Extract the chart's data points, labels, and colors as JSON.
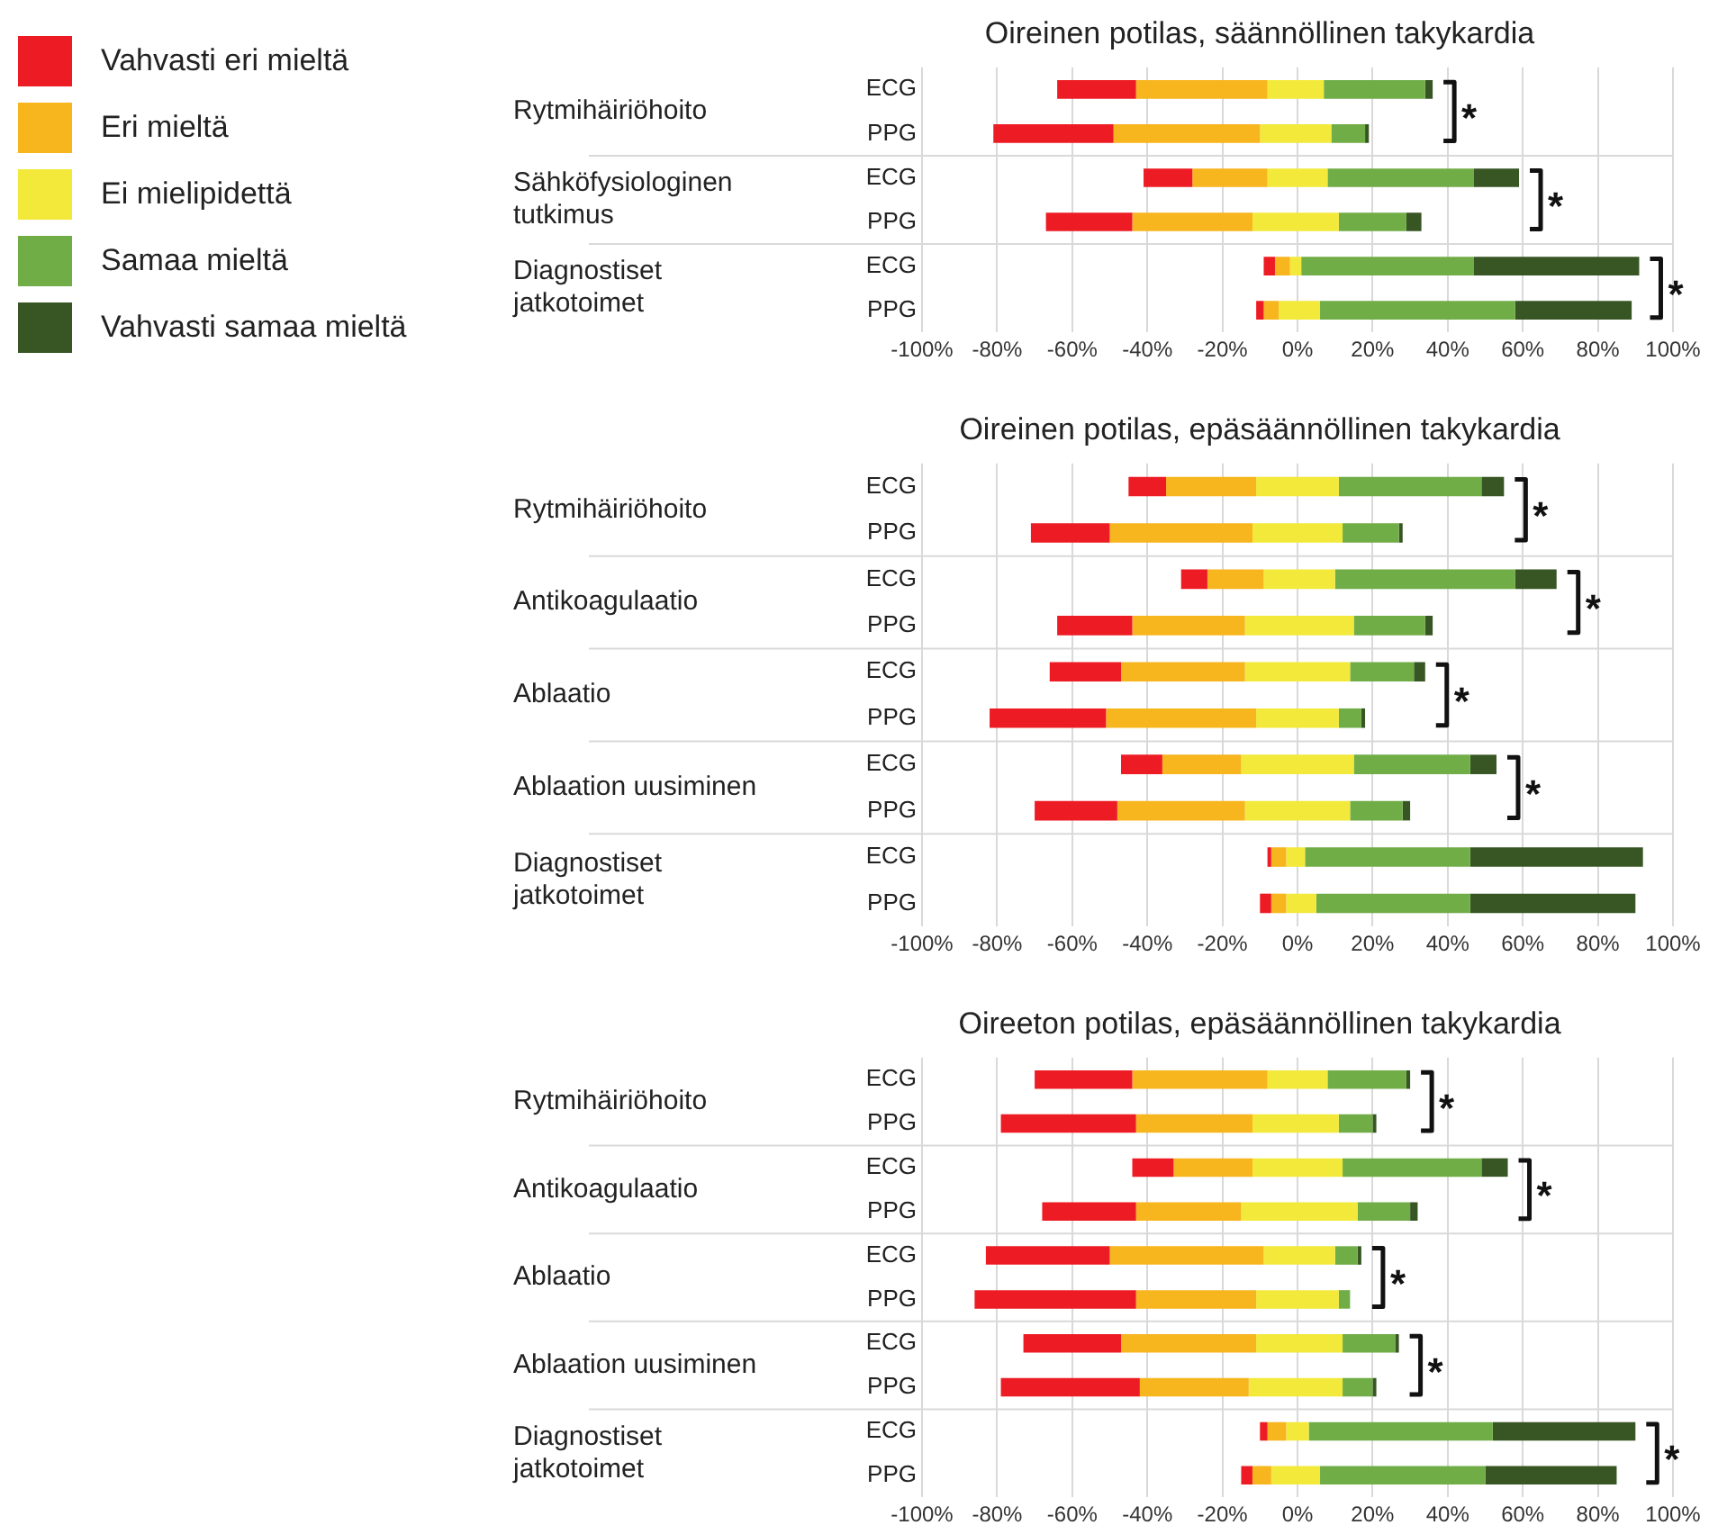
{
  "chart_data": [
    {
      "type": "bar",
      "title": "Oireinen potilas, säännöllinen takykardia",
      "orientation": "horizontal",
      "grid": "x",
      "legend": "left",
      "categories": [
        "ECG",
        "PPG",
        "ECG",
        "PPG",
        "ECG",
        "PPG"
      ],
      "series": [
        {
          "name": "Vahvasti eri mieltä",
          "color": "#ed1c24",
          "base": [
            -64,
            -81,
            -41,
            -67,
            -9,
            -11
          ],
          "values": [
            21,
            32,
            13,
            23,
            3,
            2
          ]
        },
        {
          "name": "Eri mieltä",
          "color": "#f7b51e",
          "base": [
            -43,
            -49,
            -28,
            -44,
            -6,
            -9
          ],
          "values": [
            35,
            39,
            20,
            32,
            4,
            4
          ]
        },
        {
          "name": "Ei mielipidettä",
          "color": "#f2e93a",
          "base": [
            -8,
            -10,
            -8,
            -12,
            -2,
            -5
          ],
          "values": [
            15,
            19,
            16,
            23,
            3,
            11
          ]
        },
        {
          "name": "Samaa mieltä",
          "color": "#70ad47",
          "base": [
            7,
            9,
            8,
            11,
            1,
            6
          ],
          "values": [
            27,
            9,
            39,
            18,
            46,
            52
          ]
        },
        {
          "name": "Vahvasti samaa mieltä",
          "color": "#375623",
          "base": [
            34,
            18,
            47,
            29,
            47,
            58
          ],
          "values": [
            2,
            1,
            12,
            4,
            44,
            31
          ]
        }
      ],
      "xlim": [
        -100,
        100
      ],
      "xticks": [
        {
          "value": -100,
          "label": "-100%"
        },
        {
          "value": -80,
          "label": "-80%"
        },
        {
          "value": -60,
          "label": "-60%"
        },
        {
          "value": -40,
          "label": "-40%"
        },
        {
          "value": -20,
          "label": "-20%"
        },
        {
          "value": 0,
          "label": "0%"
        },
        {
          "value": 20,
          "label": "20%"
        },
        {
          "value": 40,
          "label": "40%"
        },
        {
          "value": 60,
          "label": "60%"
        },
        {
          "value": 80,
          "label": "80%"
        },
        {
          "value": 100,
          "label": "100%"
        }
      ],
      "annotations": [
        "Rytmihäiriöhoito",
        "Sähköfysiologinen tutkimus",
        "Diagnostiset jatkotoimet",
        "*",
        "*",
        "*"
      ]
    },
    {
      "type": "bar",
      "title": "Oireinen potilas, epäsäännöllinen takykardia",
      "orientation": "horizontal",
      "grid": "x",
      "categories": [
        "ECG",
        "PPG",
        "ECG",
        "PPG",
        "ECG",
        "PPG",
        "ECG",
        "PPG",
        "ECG",
        "PPG"
      ],
      "series": [
        {
          "color": "#ed1c24",
          "base": [
            -45,
            -71,
            -31,
            -64,
            -66,
            -82,
            -47,
            -70,
            -8,
            -10
          ],
          "values": [
            10,
            21,
            7,
            20,
            19,
            31,
            11,
            22,
            1,
            3
          ]
        },
        {
          "color": "#f7b51e",
          "base": [
            -35,
            -50,
            -24,
            -44,
            -47,
            -51,
            -36,
            -48,
            -7,
            -7
          ],
          "values": [
            24,
            38,
            15,
            30,
            33,
            40,
            21,
            34,
            4,
            4
          ]
        },
        {
          "color": "#f2e93a",
          "base": [
            -11,
            -12,
            -9,
            -14,
            -14,
            -11,
            -15,
            -14,
            -3,
            -3
          ],
          "values": [
            22,
            24,
            19,
            29,
            28,
            22,
            30,
            28,
            5,
            8
          ]
        },
        {
          "color": "#70ad47",
          "base": [
            11,
            12,
            10,
            15,
            14,
            11,
            15,
            14,
            2,
            5
          ],
          "values": [
            38,
            15,
            48,
            19,
            17,
            6,
            31,
            14,
            44,
            41
          ]
        },
        {
          "color": "#375623",
          "base": [
            49,
            27,
            58,
            34,
            31,
            17,
            46,
            28,
            46,
            46
          ],
          "values": [
            6,
            1,
            11,
            2,
            3,
            1,
            7,
            2,
            46,
            44
          ]
        }
      ],
      "xlim": [
        -100,
        100
      ],
      "xticks": [
        {
          "value": -100,
          "label": "-100%"
        },
        {
          "value": -80,
          "label": "-80%"
        },
        {
          "value": -60,
          "label": "-60%"
        },
        {
          "value": -40,
          "label": "-40%"
        },
        {
          "value": -20,
          "label": "-20%"
        },
        {
          "value": 0,
          "label": "0%"
        },
        {
          "value": 20,
          "label": "20%"
        },
        {
          "value": 40,
          "label": "40%"
        },
        {
          "value": 60,
          "label": "60%"
        },
        {
          "value": 80,
          "label": "80%"
        },
        {
          "value": 100,
          "label": "100%"
        }
      ],
      "annotations": [
        "Rytmihäiriöhoito",
        "Antikoagulaatio",
        "Ablaatio",
        "Ablaation uusiminen",
        "Diagnostiset jatkotoimet",
        "*",
        "*",
        "*",
        "*"
      ]
    },
    {
      "type": "bar",
      "title": "Oireeton potilas, epäsäännöllinen takykardia",
      "orientation": "horizontal",
      "grid": "x",
      "categories": [
        "ECG",
        "PPG",
        "ECG",
        "PPG",
        "ECG",
        "PPG",
        "ECG",
        "PPG",
        "ECG",
        "PPG"
      ],
      "series": [
        {
          "color": "#ed1c24",
          "base": [
            -70,
            -79,
            -44,
            -68,
            -83,
            -86,
            -73,
            -79,
            -10,
            -15
          ],
          "values": [
            26,
            36,
            11,
            25,
            33,
            43,
            26,
            37,
            2,
            3
          ]
        },
        {
          "color": "#f7b51e",
          "base": [
            -44,
            -43,
            -33,
            -43,
            -50,
            -43,
            -47,
            -42,
            -8,
            -12
          ],
          "values": [
            36,
            31,
            21,
            28,
            41,
            32,
            36,
            29,
            5,
            5
          ]
        },
        {
          "color": "#f2e93a",
          "base": [
            -8,
            -12,
            -12,
            -15,
            -9,
            -11,
            -11,
            -13,
            -3,
            -7
          ],
          "values": [
            16,
            23,
            24,
            31,
            19,
            22,
            23,
            25,
            6,
            13
          ]
        },
        {
          "color": "#70ad47",
          "base": [
            8,
            11,
            12,
            16,
            10,
            11,
            12,
            12,
            3,
            6
          ],
          "values": [
            21,
            9,
            37,
            14,
            6,
            3,
            14,
            8,
            49,
            44
          ]
        },
        {
          "color": "#375623",
          "base": [
            29,
            20,
            49,
            30,
            16,
            null,
            26,
            20,
            52,
            50
          ],
          "values": [
            1,
            1,
            7,
            2,
            1,
            null,
            1,
            1,
            38,
            35
          ]
        }
      ],
      "xlim": [
        -100,
        100
      ],
      "xticks": [
        {
          "value": -100,
          "label": "-100%"
        },
        {
          "value": -80,
          "label": "-80%"
        },
        {
          "value": -60,
          "label": "-60%"
        },
        {
          "value": -40,
          "label": "-40%"
        },
        {
          "value": -20,
          "label": "-20%"
        },
        {
          "value": 0,
          "label": "0%"
        },
        {
          "value": 20,
          "label": "20%"
        },
        {
          "value": 40,
          "label": "40%"
        },
        {
          "value": 60,
          "label": "60%"
        },
        {
          "value": 80,
          "label": "80%"
        },
        {
          "value": 100,
          "label": "100%"
        }
      ],
      "annotations": [
        "Rytmihäiriöhoito",
        "Antikoagulaatio",
        "Ablaatio",
        "Ablaation uusiminen",
        "Diagnostiset jatkotoimet",
        "*",
        "*",
        "*",
        "*",
        "*"
      ]
    }
  ]
}
